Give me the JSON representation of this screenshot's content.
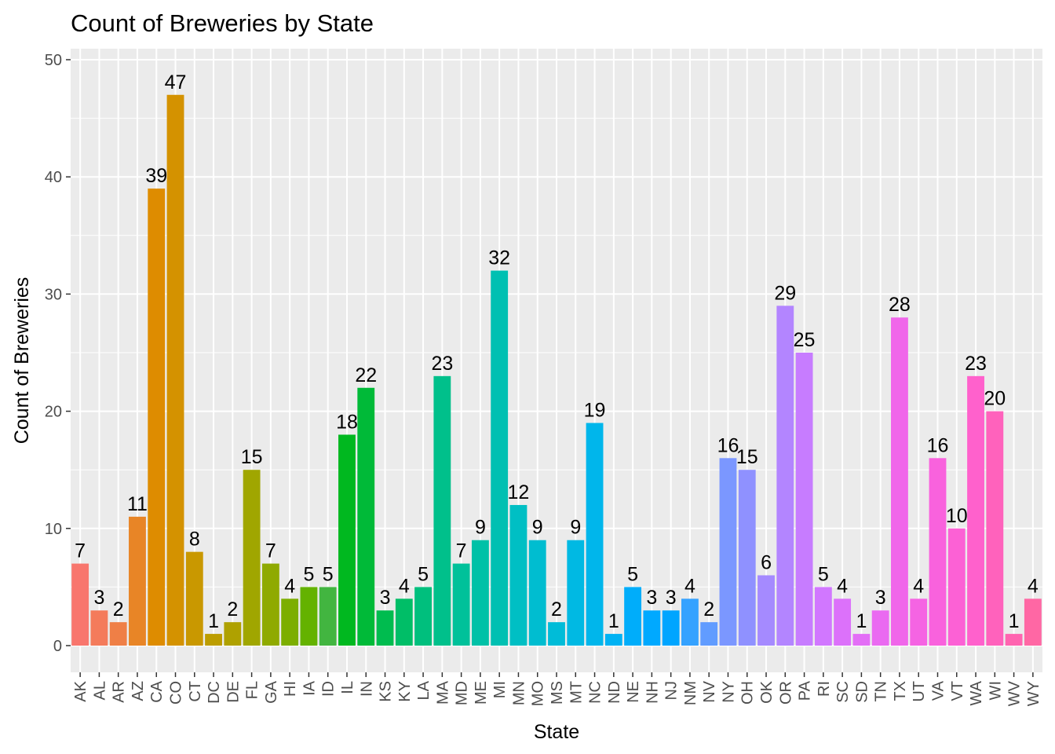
{
  "chart_data": {
    "type": "bar",
    "title": "Count of Breweries by State",
    "xlabel": "State",
    "ylabel": "Count of Breweries",
    "ylim": [
      0,
      50
    ],
    "yticks": [
      0,
      10,
      20,
      30,
      40,
      50
    ],
    "grid": true,
    "legend": "none",
    "panel_background": "#ebebeb",
    "categories": [
      "AK",
      "AL",
      "AR",
      "AZ",
      "CA",
      "CO",
      "CT",
      "DC",
      "DE",
      "FL",
      "GA",
      "HI",
      "IA",
      "ID",
      "IL",
      "IN",
      "KS",
      "KY",
      "LA",
      "MA",
      "MD",
      "ME",
      "MI",
      "MN",
      "MO",
      "MS",
      "MT",
      "NC",
      "ND",
      "NE",
      "NH",
      "NJ",
      "NM",
      "NV",
      "NY",
      "OH",
      "OK",
      "OR",
      "PA",
      "RI",
      "SC",
      "SD",
      "TN",
      "TX",
      "UT",
      "VA",
      "VT",
      "WA",
      "WI",
      "WV",
      "WY"
    ],
    "values": [
      7,
      3,
      2,
      11,
      39,
      47,
      8,
      1,
      2,
      15,
      7,
      4,
      5,
      5,
      18,
      22,
      3,
      4,
      5,
      23,
      7,
      9,
      32,
      12,
      9,
      2,
      9,
      19,
      1,
      5,
      3,
      3,
      4,
      2,
      16,
      15,
      6,
      29,
      25,
      5,
      4,
      1,
      3,
      28,
      4,
      16,
      10,
      23,
      20,
      1,
      4
    ],
    "colors": [
      "#F8766D",
      "#F47B5B",
      "#EF7F46",
      "#E88526",
      "#DE8C00",
      "#D49200",
      "#C99800",
      "#BC9D00",
      "#AFA100",
      "#A0A600",
      "#8FAA00",
      "#7CAE00",
      "#64B200",
      "#42B540",
      "#00B81F",
      "#00BA38",
      "#00BC4F",
      "#00BE67",
      "#00BF7D",
      "#00C08B",
      "#00C19A",
      "#00C1A7",
      "#00C0B2",
      "#00BFC4",
      "#00BDD0",
      "#00BCD8",
      "#00B9E3",
      "#00B6EB",
      "#00B2F3",
      "#00ADFA",
      "#00A9FF",
      "#00A5FF",
      "#35A2FF",
      "#619CFF",
      "#7B97FF",
      "#8F91FF",
      "#A58AFF",
      "#B385FF",
      "#C77CFF",
      "#D177FF",
      "#DC71FA",
      "#E36EF6",
      "#EA6AF1",
      "#F066EA",
      "#F564E3",
      "#F962DD",
      "#FC61D5",
      "#FF61CC",
      "#FF62BC",
      "#FF64B0",
      "#FF67A4"
    ]
  }
}
